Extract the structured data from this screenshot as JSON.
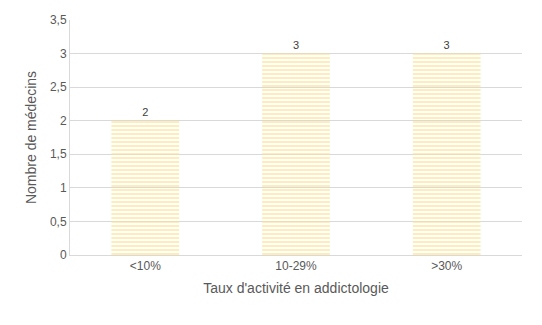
{
  "chart_data": {
    "type": "bar",
    "x_label": "Taux d'activité en addictologie",
    "y_label": "Nombre de médecins",
    "categories": [
      "<10%",
      "10-29%",
      ">30%"
    ],
    "values": [
      2,
      3,
      3
    ],
    "color": "#ffc000",
    "ylim": [
      0,
      3.5
    ],
    "yticks": [
      0,
      {
        "value": 0.5,
        "label": "0,5"
      },
      1,
      {
        "value": 1.5,
        "label": "1,5"
      },
      2,
      {
        "value": 2.5,
        "label": "2,5"
      },
      3,
      {
        "value": 3.5,
        "label": "3,5"
      }
    ],
    "grid": true,
    "data_labels": true
  }
}
